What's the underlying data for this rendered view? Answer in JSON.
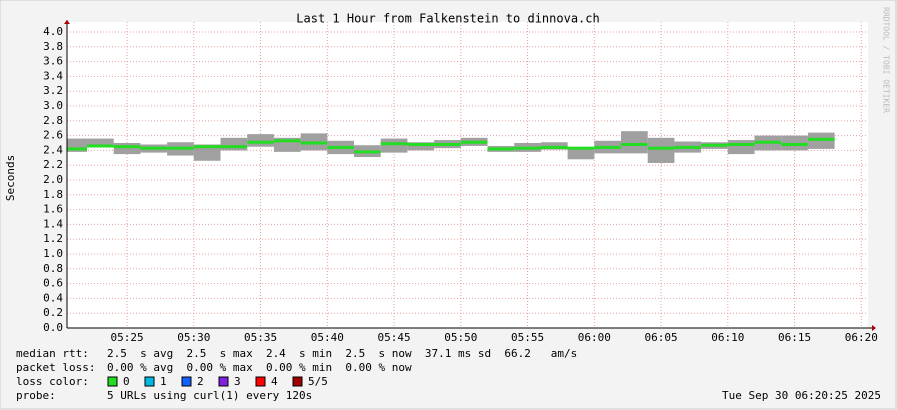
{
  "chart_data": {
    "type": "smokeping",
    "title": "Last 1 Hour from Falkenstein to dinnova.ch",
    "y_label": "Seconds",
    "side_text": "RRDTOOL / TOBI OETIKER",
    "xlim": [
      320.5,
      380.5
    ],
    "xticks": [
      {
        "value": 325,
        "label": "05:25"
      },
      {
        "value": 330,
        "label": "05:30"
      },
      {
        "value": 335,
        "label": "05:35"
      },
      {
        "value": 340,
        "label": "05:40"
      },
      {
        "value": 345,
        "label": "05:45"
      },
      {
        "value": 350,
        "label": "05:50"
      },
      {
        "value": 355,
        "label": "05:55"
      },
      {
        "value": 360,
        "label": "06:00"
      },
      {
        "value": 365,
        "label": "06:05"
      },
      {
        "value": 370,
        "label": "06:10"
      },
      {
        "value": 375,
        "label": "06:15"
      },
      {
        "value": 380,
        "label": "06:20"
      }
    ],
    "ylim": [
      0,
      4
    ],
    "yticks": [
      {
        "value": 0,
        "label": "0.0"
      },
      {
        "value": 0.2,
        "label": "0.2"
      },
      {
        "value": 0.4,
        "label": "0.4"
      },
      {
        "value": 0.6,
        "label": "0.6"
      },
      {
        "value": 0.8,
        "label": "0.8"
      },
      {
        "value": 1,
        "label": "1.0"
      },
      {
        "value": 1.2,
        "label": "1.2"
      },
      {
        "value": 1.4,
        "label": "1.4"
      },
      {
        "value": 1.6,
        "label": "1.6"
      },
      {
        "value": 1.8,
        "label": "1.8"
      },
      {
        "value": 2,
        "label": "2.0"
      },
      {
        "value": 2.2,
        "label": "2.2"
      },
      {
        "value": 2.4,
        "label": "2.4"
      },
      {
        "value": 2.6,
        "label": "2.6"
      },
      {
        "value": 2.8,
        "label": "2.8"
      },
      {
        "value": 3,
        "label": "3.0"
      },
      {
        "value": 3.2,
        "label": "3.2"
      },
      {
        "value": 3.4,
        "label": "3.4"
      },
      {
        "value": 3.6,
        "label": "3.6"
      },
      {
        "value": 3.8,
        "label": "3.8"
      },
      {
        "value": 4,
        "label": "4.0"
      }
    ],
    "grid": true,
    "x": [
      322,
      324,
      326,
      328,
      330,
      332,
      334,
      336,
      338,
      340,
      342,
      344,
      346,
      348,
      350,
      352,
      354,
      356,
      358,
      360,
      362,
      364,
      366,
      368,
      370,
      372,
      374,
      376,
      378
    ],
    "median": [
      2.42,
      2.46,
      2.45,
      2.43,
      2.43,
      2.45,
      2.45,
      2.51,
      2.53,
      2.5,
      2.44,
      2.38,
      2.49,
      2.48,
      2.48,
      2.51,
      2.42,
      2.43,
      2.44,
      2.43,
      2.44,
      2.48,
      2.43,
      2.44,
      2.47,
      2.48,
      2.51,
      2.48,
      2.55
    ],
    "smoke_low": [
      2.38,
      2.45,
      2.35,
      2.37,
      2.33,
      2.26,
      2.4,
      2.45,
      2.38,
      2.4,
      2.35,
      2.31,
      2.37,
      2.4,
      2.43,
      2.46,
      2.38,
      2.38,
      2.41,
      2.28,
      2.36,
      2.36,
      2.23,
      2.37,
      2.42,
      2.35,
      2.4,
      2.4,
      2.42
    ],
    "smoke_high": [
      2.56,
      2.56,
      2.5,
      2.48,
      2.51,
      2.48,
      2.57,
      2.62,
      2.57,
      2.63,
      2.53,
      2.47,
      2.56,
      2.51,
      2.54,
      2.57,
      2.46,
      2.5,
      2.51,
      2.44,
      2.53,
      2.66,
      2.57,
      2.52,
      2.51,
      2.54,
      2.6,
      2.6,
      2.64
    ],
    "median_color": "#22dd22",
    "smoke_color": "#a0a0a0",
    "grid_color": "#e8a0a0"
  },
  "stats": {
    "median_rtt": {
      "label": "median rtt:",
      "text": "2.5  s avg  2.5  s max  2.4  s min  2.5  s now  37.1 ms sd  66.2   am/s"
    },
    "packet_loss": {
      "label": "packet loss:",
      "text": "0.00 % avg  0.00 % max  0.00 % min  0.00 % now"
    },
    "loss_color": {
      "label": "loss color:",
      "items": [
        {
          "label": "0",
          "color": "#22dd22"
        },
        {
          "label": "1",
          "color": "#00b8e0"
        },
        {
          "label": "2",
          "color": "#1060ff"
        },
        {
          "label": "3",
          "color": "#8020e0"
        },
        {
          "label": "4",
          "color": "#ff0000"
        },
        {
          "label": "5/5",
          "color": "#a00000"
        }
      ]
    },
    "probe": {
      "label": "probe:",
      "text": "5 URLs using curl(1) every 120s"
    },
    "date": "Tue Sep 30 06:20:25 2025"
  }
}
